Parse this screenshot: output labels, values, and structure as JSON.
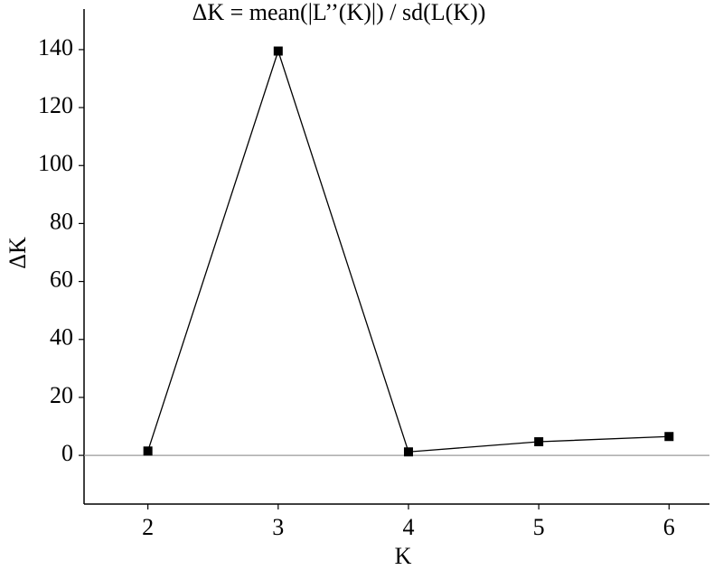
{
  "chart_data": {
    "type": "line",
    "title": "ΔK = mean(|L’’(K)|) / sd(L(K))",
    "x_label": "K",
    "y_label": "ΔK",
    "x": [
      2,
      3,
      4,
      5,
      6
    ],
    "series": [
      {
        "name": "ΔK",
        "color": "#000000",
        "values": [
          1.5,
          139.5,
          1.2,
          4.7,
          6.5
        ]
      }
    ],
    "xlim": [
      1.51,
      6.31
    ],
    "xticks": [
      2,
      3,
      4,
      5,
      6
    ],
    "ylim": [
      -16.8,
      154
    ],
    "yticks": [
      0,
      20,
      40,
      60,
      80,
      100,
      120,
      140
    ],
    "grid": false
  }
}
